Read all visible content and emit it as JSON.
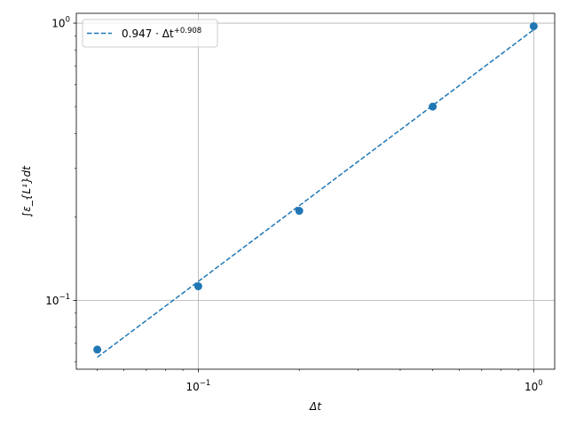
{
  "chart_data": {
    "type": "scatter",
    "x_scale": "log",
    "y_scale": "log",
    "xlabel": "Δt",
    "ylabel": "∫ε_{L¹}dt",
    "xlim": [
      0.0433,
      1.155
    ],
    "ylim": [
      0.0565,
      1.085
    ],
    "grid": true,
    "legend_position": "top-left",
    "x_ticks": [
      {
        "value": 0.1,
        "base": "10",
        "exp": "−1"
      },
      {
        "value": 1.0,
        "base": "10",
        "exp": "0"
      }
    ],
    "y_ticks": [
      {
        "value": 0.1,
        "base": "10",
        "exp": "−1"
      },
      {
        "value": 1.0,
        "base": "10",
        "exp": "0"
      }
    ],
    "points": [
      {
        "x": 0.05,
        "y": 0.0665
      },
      {
        "x": 0.1,
        "y": 0.1125
      },
      {
        "x": 0.2,
        "y": 0.2105
      },
      {
        "x": 0.5,
        "y": 0.5
      },
      {
        "x": 1.0,
        "y": 0.975
      }
    ],
    "fit": {
      "coefficient": 0.947,
      "exponent": 0.908,
      "x_range": [
        0.05,
        1.0
      ],
      "legend_prefix": "0.947 · Δt",
      "legend_exponent": "+0.908"
    },
    "colors": {
      "series": "#1f77b4",
      "grid": "#b0b0b0",
      "axis": "#000000"
    }
  }
}
